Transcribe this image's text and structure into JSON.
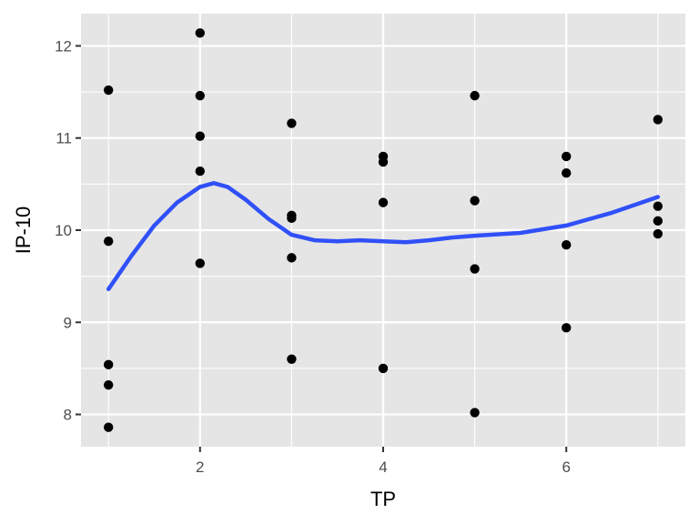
{
  "chart_data": {
    "type": "scatter",
    "title": "",
    "xlabel": "TP",
    "ylabel": "IP-10",
    "xlim": [
      0.7,
      7.3
    ],
    "ylim": [
      7.65,
      12.35
    ],
    "x_ticks": [
      2,
      4,
      6
    ],
    "y_ticks": [
      8,
      9,
      10,
      11,
      12
    ],
    "grid": true,
    "legend": "none",
    "colors": {
      "panel": "#e5e5e5",
      "grid": "#ffffff",
      "points": "#000000",
      "smooth": "#3050f8",
      "tick_text": "#4d4d4d",
      "axis_title": "#000000"
    },
    "points": [
      {
        "x": 1,
        "y": 11.52
      },
      {
        "x": 1,
        "y": 9.88
      },
      {
        "x": 1,
        "y": 8.54
      },
      {
        "x": 1,
        "y": 8.32
      },
      {
        "x": 1,
        "y": 7.86
      },
      {
        "x": 2,
        "y": 12.14
      },
      {
        "x": 2,
        "y": 11.46
      },
      {
        "x": 2,
        "y": 11.02
      },
      {
        "x": 2,
        "y": 10.64
      },
      {
        "x": 2,
        "y": 9.64
      },
      {
        "x": 3,
        "y": 11.16
      },
      {
        "x": 3,
        "y": 10.16
      },
      {
        "x": 3,
        "y": 10.13
      },
      {
        "x": 3,
        "y": 9.7
      },
      {
        "x": 3,
        "y": 8.6
      },
      {
        "x": 4,
        "y": 10.8
      },
      {
        "x": 4,
        "y": 10.74
      },
      {
        "x": 4,
        "y": 10.3
      },
      {
        "x": 4,
        "y": 8.5
      },
      {
        "x": 5,
        "y": 11.46
      },
      {
        "x": 5,
        "y": 10.32
      },
      {
        "x": 5,
        "y": 9.58
      },
      {
        "x": 5,
        "y": 8.02
      },
      {
        "x": 6,
        "y": 10.8
      },
      {
        "x": 6,
        "y": 10.62
      },
      {
        "x": 6,
        "y": 9.84
      },
      {
        "x": 6,
        "y": 8.94
      },
      {
        "x": 7,
        "y": 11.2
      },
      {
        "x": 7,
        "y": 10.26
      },
      {
        "x": 7,
        "y": 10.1
      },
      {
        "x": 7,
        "y": 9.96
      }
    ],
    "smooth_line": [
      {
        "x": 1.0,
        "y": 9.36
      },
      {
        "x": 1.25,
        "y": 9.72
      },
      {
        "x": 1.5,
        "y": 10.05
      },
      {
        "x": 1.75,
        "y": 10.3
      },
      {
        "x": 2.0,
        "y": 10.47
      },
      {
        "x": 2.15,
        "y": 10.51
      },
      {
        "x": 2.3,
        "y": 10.47
      },
      {
        "x": 2.5,
        "y": 10.33
      },
      {
        "x": 2.75,
        "y": 10.12
      },
      {
        "x": 3.0,
        "y": 9.95
      },
      {
        "x": 3.25,
        "y": 9.89
      },
      {
        "x": 3.5,
        "y": 9.88
      },
      {
        "x": 3.75,
        "y": 9.89
      },
      {
        "x": 4.0,
        "y": 9.88
      },
      {
        "x": 4.25,
        "y": 9.87
      },
      {
        "x": 4.5,
        "y": 9.89
      },
      {
        "x": 4.75,
        "y": 9.92
      },
      {
        "x": 5.0,
        "y": 9.94
      },
      {
        "x": 5.5,
        "y": 9.97
      },
      {
        "x": 6.0,
        "y": 10.05
      },
      {
        "x": 6.5,
        "y": 10.19
      },
      {
        "x": 7.0,
        "y": 10.36
      }
    ]
  }
}
